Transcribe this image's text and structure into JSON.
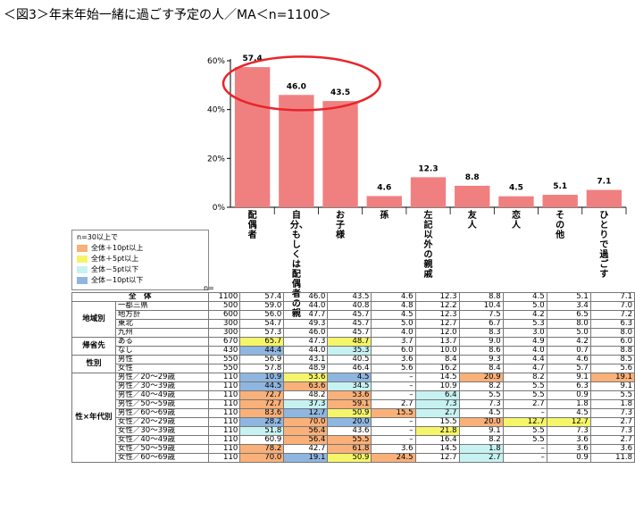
{
  "title": "＜図3＞年末年始一緒に過ごす予定の人／MA＜n=1100＞",
  "chart_data": {
    "type": "bar",
    "categories": [
      "配偶者",
      "自分、もしくは配偶者の親",
      "お子様",
      "孫",
      "左記以外の親戚",
      "友人",
      "恋人",
      "その他",
      "ひとりで過ごす"
    ],
    "values": [
      57.4,
      46.0,
      43.5,
      4.6,
      12.3,
      8.8,
      4.5,
      5.1,
      7.1
    ],
    "value_labels": [
      "57.4",
      "46.0",
      "43.5",
      "4.6",
      "12.3",
      "8.8",
      "4.5",
      "5.1",
      "7.1"
    ],
    "yticks": [
      "0%",
      "20%",
      "40%",
      "60%"
    ],
    "ylim": [
      0,
      60
    ],
    "bar_color": "#f08080",
    "highlight_color": "#e8252b",
    "highlighted_bars": [
      "配偶者",
      "自分、もしくは配偶者の親",
      "お子様"
    ]
  },
  "legend": {
    "title": "n=30以上で",
    "items": [
      {
        "label": "全体＋10pt以上",
        "color": "#f9b079"
      },
      {
        "label": "全体＋5pt以上",
        "color": "#f5f56a"
      },
      {
        "label": "全体－5pt以下",
        "color": "#c7f2f2"
      },
      {
        "label": "全体－10pt以下",
        "color": "#8fb6e0"
      }
    ]
  },
  "table": {
    "n_header": "n=",
    "total": {
      "label": "全　体",
      "n": "1100",
      "values": [
        "57.4",
        "46.0",
        "43.5",
        "4.6",
        "12.3",
        "8.8",
        "4.5",
        "5.1",
        "7.1"
      ]
    },
    "groups": [
      {
        "name": "地域別",
        "rows": [
          {
            "label": "一都三県",
            "n": "500",
            "values": [
              "59.0",
              "44.0",
              "40.8",
              "4.8",
              "12.2",
              "10.4",
              "5.0",
              "3.4",
              "7.0"
            ],
            "hl": [
              "",
              "",
              "",
              "",
              "",
              "",
              "",
              "",
              ""
            ]
          },
          {
            "label": "地方計",
            "n": "600",
            "values": [
              "56.0",
              "47.7",
              "45.7",
              "4.5",
              "12.3",
              "7.5",
              "4.2",
              "6.5",
              "7.2"
            ],
            "hl": [
              "",
              "",
              "",
              "",
              "",
              "",
              "",
              "",
              ""
            ]
          },
          {
            "label": "東北",
            "n": "300",
            "values": [
              "54.7",
              "49.3",
              "45.7",
              "5.0",
              "12.7",
              "6.7",
              "5.3",
              "8.0",
              "6.3"
            ],
            "hl": [
              "",
              "",
              "",
              "",
              "",
              "",
              "",
              "",
              ""
            ]
          },
          {
            "label": "九州",
            "n": "300",
            "values": [
              "57.3",
              "46.0",
              "45.7",
              "4.0",
              "12.0",
              "8.3",
              "3.0",
              "5.0",
              "8.0"
            ],
            "hl": [
              "",
              "",
              "",
              "",
              "",
              "",
              "",
              "",
              ""
            ]
          }
        ]
      },
      {
        "name": "帰省先",
        "rows": [
          {
            "label": "ある",
            "n": "670",
            "values": [
              "65.7",
              "47.3",
              "48.7",
              "3.7",
              "13.7",
              "9.0",
              "4.9",
              "4.2",
              "6.0"
            ],
            "hl": [
              "ye",
              "",
              "ye",
              "",
              "",
              "",
              "",
              "",
              ""
            ]
          },
          {
            "label": "なし",
            "n": "430",
            "values": [
              "44.4",
              "44.0",
              "35.3",
              "6.0",
              "10.0",
              "8.6",
              "4.0",
              "0.7",
              "8.8"
            ],
            "hl": [
              "bl",
              "",
              "lb",
              "",
              "",
              "",
              "",
              "",
              ""
            ]
          }
        ]
      },
      {
        "name": "性別",
        "rows": [
          {
            "label": "男性",
            "n": "550",
            "values": [
              "56.9",
              "43.1",
              "40.5",
              "3.6",
              "8.4",
              "9.3",
              "4.4",
              "4.6",
              "8.5"
            ],
            "hl": [
              "",
              "",
              "",
              "",
              "",
              "",
              "",
              "",
              ""
            ]
          },
          {
            "label": "女性",
            "n": "550",
            "values": [
              "57.8",
              "48.9",
              "46.4",
              "5.6",
              "16.2",
              "8.4",
              "4.7",
              "5.7",
              "5.6"
            ],
            "hl": [
              "",
              "",
              "",
              "",
              "",
              "",
              "",
              "",
              ""
            ]
          }
        ]
      },
      {
        "name": "性×年代別",
        "rows": [
          {
            "label": "男性／20～29歳",
            "n": "110",
            "values": [
              "10.9",
              "53.6",
              "4.5",
              "–",
              "14.5",
              "20.9",
              "8.2",
              "9.1",
              "19.1"
            ],
            "hl": [
              "bl",
              "ye",
              "bl",
              "",
              "",
              "or",
              "",
              "",
              "or"
            ]
          },
          {
            "label": "男性／30～39歳",
            "n": "110",
            "values": [
              "44.5",
              "63.6",
              "34.5",
              "–",
              "10.9",
              "8.2",
              "5.5",
              "6.3",
              "9.1"
            ],
            "hl": [
              "bl",
              "or",
              "lb",
              "",
              "",
              "",
              "",
              "",
              ""
            ]
          },
          {
            "label": "男性／40～49歳",
            "n": "110",
            "values": [
              "72.7",
              "48.2",
              "53.6",
              "–",
              "6.4",
              "5.5",
              "5.5",
              "0.9",
              "5.5"
            ],
            "hl": [
              "or",
              "",
              "or",
              "",
              "lb",
              "",
              "",
              "",
              ""
            ]
          },
          {
            "label": "男性／50～59歳",
            "n": "110",
            "values": [
              "72.7",
              "37.3",
              "59.1",
              "2.7",
              "7.3",
              "7.3",
              "2.7",
              "1.8",
              "1.8"
            ],
            "hl": [
              "or",
              "lb",
              "or",
              "",
              "lb",
              "",
              "",
              "",
              ""
            ]
          },
          {
            "label": "男性／60～69歳",
            "n": "110",
            "values": [
              "83.6",
              "12.7",
              "50.9",
              "15.5",
              "2.7",
              "4.5",
              "–",
              "4.5",
              "7.3"
            ],
            "hl": [
              "or",
              "bl",
              "ye",
              "or",
              "lb",
              "",
              "",
              "",
              ""
            ]
          },
          {
            "label": "女性／20～29歳",
            "n": "110",
            "values": [
              "28.2",
              "70.0",
              "20.0",
              "–",
              "15.5",
              "20.0",
              "12.7",
              "12.7",
              "2.7"
            ],
            "hl": [
              "bl",
              "or",
              "bl",
              "",
              "",
              "or",
              "ye",
              "ye",
              ""
            ]
          },
          {
            "label": "女性／30～39歳",
            "n": "110",
            "values": [
              "51.8",
              "56.4",
              "43.6",
              "–",
              "21.8",
              "9.1",
              "5.5",
              "7.3",
              "7.3"
            ],
            "hl": [
              "lb",
              "or",
              "",
              "",
              "ye",
              "",
              "",
              "",
              ""
            ]
          },
          {
            "label": "女性／40～49歳",
            "n": "110",
            "values": [
              "60.9",
              "56.4",
              "55.5",
              "–",
              "16.4",
              "8.2",
              "5.5",
              "3.6",
              "2.7"
            ],
            "hl": [
              "",
              "or",
              "or",
              "",
              "",
              "",
              "",
              "",
              ""
            ]
          },
          {
            "label": "女性／50～59歳",
            "n": "110",
            "values": [
              "78.2",
              "42.7",
              "61.8",
              "3.6",
              "14.5",
              "1.8",
              "–",
              "3.6",
              "3.6"
            ],
            "hl": [
              "or",
              "",
              "or",
              "",
              "",
              "lb",
              "",
              "",
              ""
            ]
          },
          {
            "label": "女性／60～69歳",
            "n": "110",
            "values": [
              "70.0",
              "19.1",
              "50.9",
              "24.5",
              "12.7",
              "2.7",
              "–",
              "0.9",
              "11.8"
            ],
            "hl": [
              "or",
              "bl",
              "ye",
              "or",
              "",
              "lb",
              "",
              "",
              ""
            ]
          }
        ]
      }
    ]
  }
}
